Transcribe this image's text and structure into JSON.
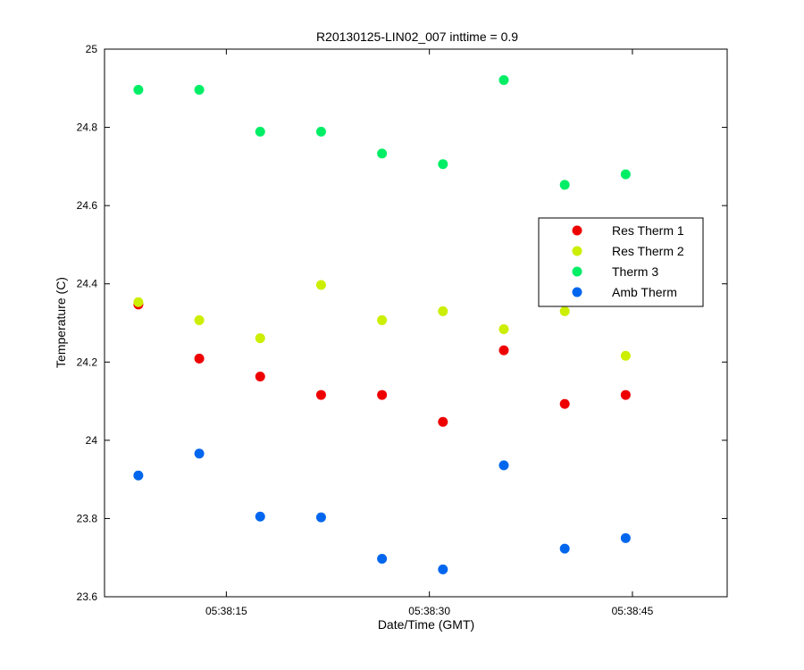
{
  "chart_data": {
    "type": "scatter",
    "title": "R20130125-LIN02_007 inttime = 0.9",
    "xlabel": "Date/Time (GMT)",
    "ylabel": "Temperature (C)",
    "x_unit": "time of day HH:MM:SS",
    "xlim": [
      "05:38:06",
      "05:38:52"
    ],
    "ylim": [
      23.6,
      25.0
    ],
    "x_ticks": [
      "05:38:15",
      "05:38:30",
      "05:38:45"
    ],
    "y_ticks": [
      "23.6",
      "23.8",
      "24",
      "24.2",
      "24.4",
      "24.6",
      "24.8",
      "25"
    ],
    "y_tick_values": [
      23.6,
      23.8,
      24.0,
      24.2,
      24.4,
      24.6,
      24.8,
      25.0
    ],
    "x_times": [
      "05:38:08.5",
      "05:38:13",
      "05:38:17.5",
      "05:38:22",
      "05:38:26.5",
      "05:38:31",
      "05:38:35.5",
      "05:38:40",
      "05:38:44.5"
    ],
    "legend_position": "center-right",
    "grid": false,
    "series": [
      {
        "name": "Res Therm 1",
        "color": "#ee0000",
        "points": [
          {
            "x": "05:38:08.5",
            "y": 24.347
          },
          {
            "x": "05:38:13",
            "y": 24.209
          },
          {
            "x": "05:38:17.5",
            "y": 24.163
          },
          {
            "x": "05:38:22",
            "y": 24.116
          },
          {
            "x": "05:38:26.5",
            "y": 24.116
          },
          {
            "x": "05:38:31",
            "y": 24.047
          },
          {
            "x": "05:38:35.5",
            "y": 24.23
          },
          {
            "x": "05:38:40",
            "y": 24.093
          },
          {
            "x": "05:38:44.5",
            "y": 24.116
          }
        ]
      },
      {
        "name": "Res Therm 2",
        "color": "#ccee00",
        "points": [
          {
            "x": "05:38:08.5",
            "y": 24.353
          },
          {
            "x": "05:38:13",
            "y": 24.307
          },
          {
            "x": "05:38:17.5",
            "y": 24.261
          },
          {
            "x": "05:38:22",
            "y": 24.397
          },
          {
            "x": "05:38:26.5",
            "y": 24.307
          },
          {
            "x": "05:38:31",
            "y": 24.33
          },
          {
            "x": "05:38:35.5",
            "y": 24.284
          },
          {
            "x": "05:38:40",
            "y": 24.33
          },
          {
            "x": "05:38:44.5",
            "y": 24.216
          }
        ]
      },
      {
        "name": "Therm 3",
        "color": "#00ee66",
        "points": [
          {
            "x": "05:38:08.5",
            "y": 24.896
          },
          {
            "x": "05:38:13",
            "y": 24.896
          },
          {
            "x": "05:38:17.5",
            "y": 24.789
          },
          {
            "x": "05:38:22",
            "y": 24.789
          },
          {
            "x": "05:38:26.5",
            "y": 24.733
          },
          {
            "x": "05:38:31",
            "y": 24.706
          },
          {
            "x": "05:38:35.5",
            "y": 24.921
          },
          {
            "x": "05:38:40",
            "y": 24.653
          },
          {
            "x": "05:38:44.5",
            "y": 24.68
          }
        ]
      },
      {
        "name": "Amb Therm",
        "color": "#0066ee",
        "points": [
          {
            "x": "05:38:08.5",
            "y": 23.91
          },
          {
            "x": "05:38:13",
            "y": 23.966
          },
          {
            "x": "05:38:17.5",
            "y": 23.805
          },
          {
            "x": "05:38:22",
            "y": 23.803
          },
          {
            "x": "05:38:26.5",
            "y": 23.697
          },
          {
            "x": "05:38:31",
            "y": 23.67
          },
          {
            "x": "05:38:35.5",
            "y": 23.936
          },
          {
            "x": "05:38:40",
            "y": 23.723
          },
          {
            "x": "05:38:44.5",
            "y": 23.75
          }
        ]
      }
    ]
  }
}
